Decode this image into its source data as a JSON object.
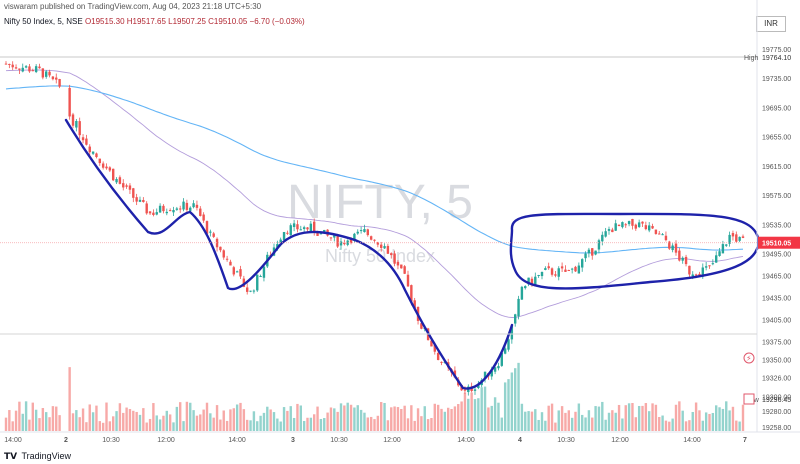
{
  "publisher": "viswaram published on TradingView.com, Aug 04, 2023 21:18 UTC+5:30",
  "header": {
    "symbol_line": "Nifty 50 Index, 5, NSE",
    "ohlc": "O19515.30 H19517.65 L19507.25 C19510.05",
    "change": "−6.70 (−0.03%)",
    "currency": "INR"
  },
  "watermark": {
    "ticker": "NIFTY, 5",
    "name": "Nifty 50 Index"
  },
  "footer": {
    "brand": "TradingView"
  },
  "colors": {
    "up": "#26a69a",
    "down": "#ef5350",
    "ema_fast": "#b39ddb",
    "ema_slow": "#64b5f6",
    "annotation": "#1e22aa",
    "price_tag": "#f23645"
  },
  "chart_data": {
    "type": "candlestick",
    "y_axis_labels": [
      "19775.00",
      "19735.00",
      "19695.00",
      "19655.00",
      "19615.00",
      "19575.00",
      "19535.00",
      "19495.00",
      "19465.00",
      "19435.00",
      "19405.00",
      "19375.00",
      "19350.00",
      "19326.00",
      "19300.00",
      "19280.00",
      "19258.00"
    ],
    "x_axis_labels": [
      "14:00",
      "2",
      "10:30",
      "12:00",
      "14:00",
      "3",
      "10:30",
      "12:00",
      "14:00",
      "4",
      "10:30",
      "12:00",
      "14:00",
      "7"
    ],
    "markers": {
      "high_label": "High",
      "high_value": "19764.10",
      "low_label": "Low",
      "low_value": "19296.45",
      "last_value": "19510.05"
    },
    "event_icon": "lightning-icon"
  }
}
